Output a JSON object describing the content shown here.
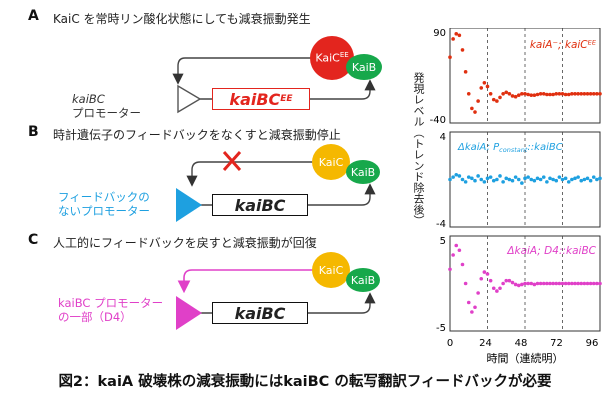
{
  "colors": {
    "panelA": "#e03010",
    "panelB": "#1ea0e0",
    "panelC": "#e040c8",
    "kaiC_a": "#e3251e",
    "kaiC_bc": "#f5b800",
    "kaiB": "#17a84b"
  },
  "panelA": {
    "label": "A",
    "title": "KaiC を常時リン酸化状態にしても減衰振動発生",
    "kaic": "KaiC",
    "kaic_sup": "EE",
    "kaib": "KaiB",
    "promoter_line1": "kaiBC",
    "promoter_line2": "プロモーター",
    "gene": "kaiBC",
    "gene_sup": "EE"
  },
  "panelB": {
    "label": "B",
    "title": "時計遺伝子のフィードバックをなくすと減衰振動停止",
    "kaic": "KaiC",
    "kaib": "KaiB",
    "promoter_line1": "フィードバックの",
    "promoter_line2": "ないプロモーター",
    "gene": "kaiBC"
  },
  "panelC": {
    "label": "C",
    "title": "人工的にフィードバックを戻すと減衰振動が回復",
    "kaic": "KaiC",
    "kaib": "KaiB",
    "promoter_line1": "kaiBC プロモーター",
    "promoter_line2": "の一部（D4）",
    "gene": "kaiBC"
  },
  "caption": "図2：kaiA 破壊株の減衰振動にはkaiBC の転写翻訳フィードバックが必要",
  "chart_data": [
    {
      "type": "scatter",
      "series": [
        {
          "name": "kaiA⁻; kaiCᴱᴱ",
          "color": "#e03010",
          "x": [
            0,
            2,
            4,
            6,
            8,
            10,
            12,
            14,
            16,
            18,
            20,
            22,
            24,
            26,
            28,
            30,
            32,
            34,
            36,
            38,
            40,
            42,
            44,
            46,
            48,
            50,
            52,
            54,
            56,
            58,
            60,
            62,
            64,
            66,
            68,
            70,
            72,
            74,
            76,
            78,
            80,
            82,
            84,
            86,
            88,
            90,
            92,
            94,
            96
          ],
          "y": [
            50,
            75,
            82,
            80,
            60,
            30,
            0,
            -20,
            -25,
            -10,
            8,
            15,
            10,
            0,
            -8,
            -10,
            -5,
            0,
            2,
            0,
            -3,
            -4,
            -2,
            0,
            0,
            -1,
            -2,
            -2,
            -1,
            0,
            0,
            -1,
            -1,
            -1,
            0,
            0,
            0,
            -1,
            -1,
            0,
            0,
            0,
            0,
            0,
            0,
            0,
            0,
            0,
            0
          ]
        }
      ],
      "xlim": [
        0,
        96
      ],
      "ylim": [
        -40,
        90
      ],
      "yticks": [
        "90",
        "-40"
      ]
    },
    {
      "type": "scatter",
      "series": [
        {
          "name": "ΔkaiA; P constant::kaiBC",
          "color": "#1ea0e0",
          "x": [
            0,
            2,
            4,
            6,
            8,
            10,
            12,
            14,
            16,
            18,
            20,
            22,
            24,
            26,
            28,
            30,
            32,
            34,
            36,
            38,
            40,
            42,
            44,
            46,
            48,
            50,
            52,
            54,
            56,
            58,
            60,
            62,
            64,
            66,
            68,
            70,
            72,
            74,
            76,
            78,
            80,
            82,
            84,
            86,
            88,
            90,
            92,
            94,
            96
          ],
          "y": [
            0,
            0.2,
            0.4,
            0.3,
            0,
            -0.2,
            0.2,
            0.1,
            -0.1,
            0.3,
            0,
            -0.2,
            0.1,
            0.2,
            -0.1,
            0,
            0.3,
            -0.2,
            0.1,
            0,
            -0.1,
            0.2,
            0,
            -0.3,
            0.1,
            0.2,
            0,
            -0.1,
            0.1,
            0,
            0.2,
            -0.2,
            0.1,
            0,
            -0.1,
            0.2,
            0,
            0.1,
            -0.2,
            0,
            0.1,
            0.2,
            -0.1,
            0,
            0.1,
            -0.1,
            0.2,
            0,
            0.1
          ]
        }
      ],
      "xlim": [
        0,
        96
      ],
      "ylim": [
        -4,
        4
      ],
      "yticks": [
        "4",
        "-4"
      ]
    },
    {
      "type": "scatter",
      "series": [
        {
          "name": "ΔkaiA; D4::kaiBC",
          "color": "#e040c8",
          "x": [
            0,
            2,
            4,
            6,
            8,
            10,
            12,
            14,
            16,
            18,
            20,
            22,
            24,
            26,
            28,
            30,
            32,
            34,
            36,
            38,
            40,
            42,
            44,
            46,
            48,
            50,
            52,
            54,
            56,
            58,
            60,
            62,
            64,
            66,
            68,
            70,
            72,
            74,
            76,
            78,
            80,
            82,
            84,
            86,
            88,
            90,
            92,
            94,
            96
          ],
          "y": [
            1.5,
            3,
            4,
            3.5,
            2,
            0,
            -2,
            -3,
            -2.5,
            -1,
            0.5,
            1.2,
            1,
            0.3,
            -0.5,
            -0.8,
            -0.5,
            0,
            0.3,
            0.3,
            0.1,
            -0.1,
            -0.2,
            -0.1,
            0,
            0,
            0,
            -0.1,
            0,
            0,
            0,
            0,
            0,
            0,
            0,
            0,
            0,
            0,
            0,
            0,
            0,
            0,
            0,
            0,
            0,
            0,
            0,
            0,
            0
          ]
        }
      ],
      "xlim": [
        0,
        96
      ],
      "ylim": [
        -5,
        5
      ],
      "yticks": [
        "5",
        "-5"
      ]
    }
  ],
  "chart_meta": {
    "ylabel": "発現レベル（トレンド除去後）",
    "xlabel": "時間（連続明）",
    "xticks": [
      "0",
      "24",
      "48",
      "72",
      "96"
    ],
    "legend_a": "kaiA⁻; kaiCᴱᴱ",
    "legend_b_prefix": "ΔkaiA; P",
    "legend_b_sub": "constant",
    "legend_b_suffix": "::kaiBC",
    "legend_c": "ΔkaiA; D4::kaiBC"
  }
}
